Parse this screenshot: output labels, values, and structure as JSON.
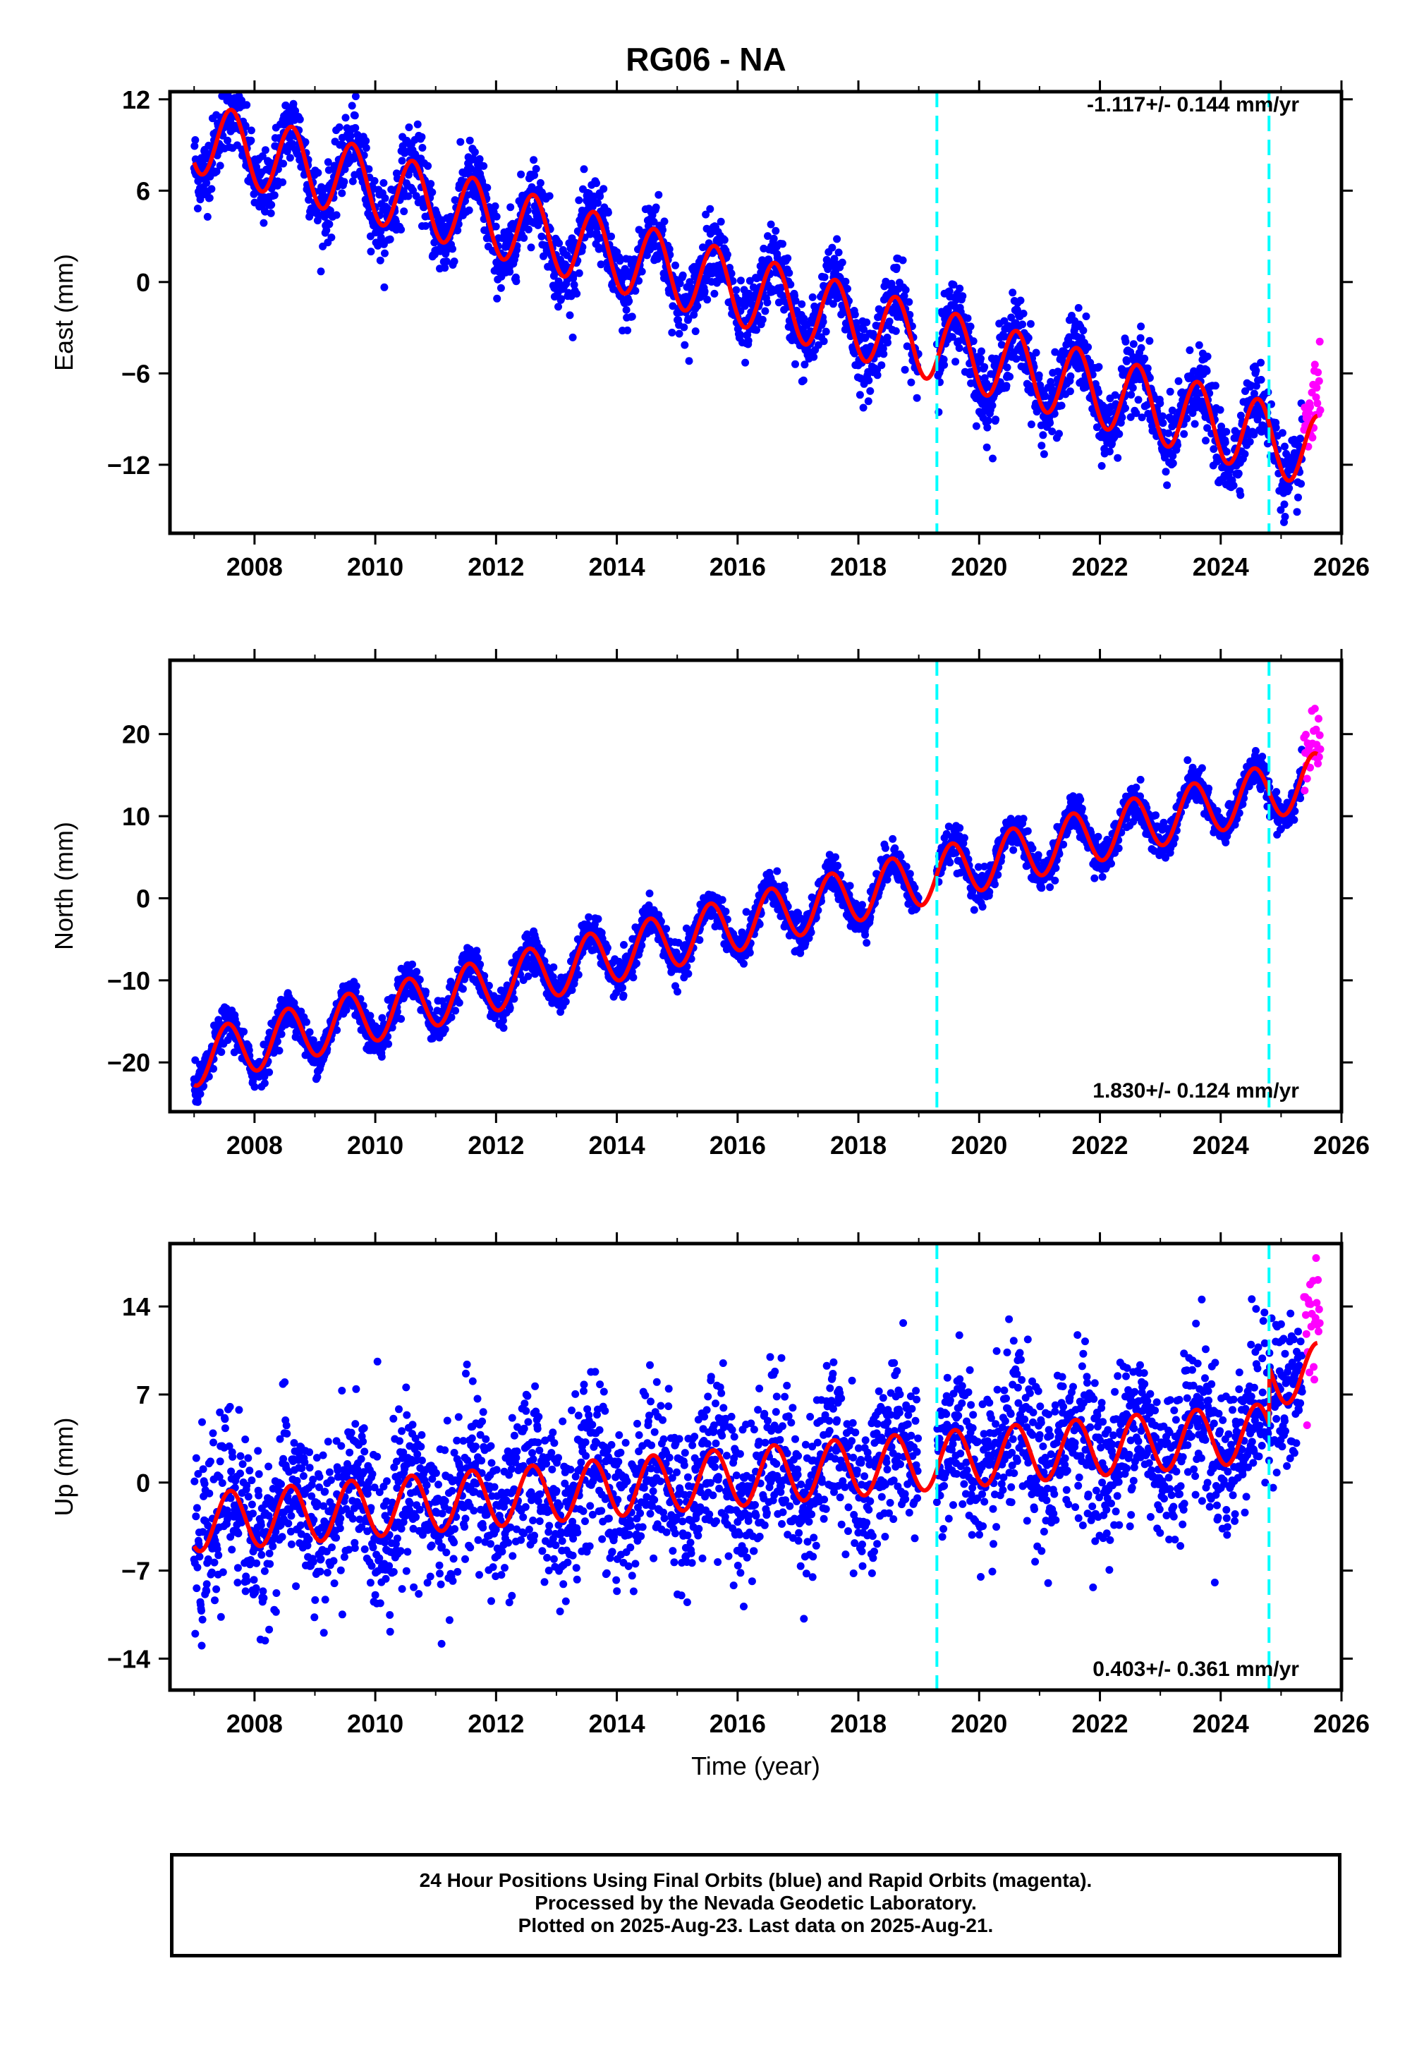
{
  "title": "RG06 - NA",
  "colors": {
    "final": "#0000ff",
    "rapid": "#ff00ff",
    "model": "#ff0000",
    "event": "#00ffff"
  },
  "chart_data": [
    {
      "type": "scatter",
      "name": "east",
      "ylabel": "East (mm)",
      "xlabel": "",
      "xlim": [
        2006.6,
        2026.0
      ],
      "ylim": [
        -16.5,
        12.5
      ],
      "yticks": [
        12,
        6,
        0,
        -6,
        -12
      ],
      "xticks": [
        2008,
        2010,
        2012,
        2014,
        2016,
        2018,
        2020,
        2022,
        2024,
        2026
      ],
      "rate": "-1.117+/- 0.144 mm/yr",
      "rate_position": "top-right",
      "events": [
        2019.3,
        2024.8
      ],
      "model": {
        "start": 2007.0,
        "end": 2025.6,
        "value_at_start": 9.6,
        "trend": -1.117,
        "annual_amplitude": 2.4,
        "annual_peak": 0.62
      },
      "noise": 1.2,
      "gap": [
        2019.0,
        2019.3
      ]
    },
    {
      "type": "scatter",
      "name": "north",
      "ylabel": "North (mm)",
      "xlabel": "",
      "xlim": [
        2006.6,
        2026.0
      ],
      "ylim": [
        -26,
        29
      ],
      "yticks": [
        20,
        10,
        0,
        -10,
        -20
      ],
      "xticks": [
        2008,
        2010,
        2012,
        2014,
        2016,
        2018,
        2020,
        2022,
        2024,
        2026
      ],
      "rate": "1.830+/- 0.124 mm/yr",
      "rate_position": "bottom-right",
      "events": [
        2019.3,
        2024.8
      ],
      "model": {
        "start": 2007.0,
        "end": 2025.6,
        "value_at_start": -19.6,
        "trend": 1.83,
        "annual_amplitude": 3.3,
        "annual_peak": 0.55
      },
      "noise": 1.1,
      "gap": [
        2019.0,
        2019.3
      ]
    },
    {
      "type": "scatter",
      "name": "up",
      "ylabel": "Up (mm)",
      "xlabel": "Time (year)",
      "xlim": [
        2006.6,
        2026.0
      ],
      "ylim": [
        -16.5,
        19
      ],
      "yticks": [
        14,
        7,
        0,
        -7,
        -14
      ],
      "xticks": [
        2008,
        2010,
        2012,
        2014,
        2016,
        2018,
        2020,
        2022,
        2024,
        2026
      ],
      "rate": "0.403+/- 0.361 mm/yr",
      "rate_position": "bottom-right",
      "events": [
        2019.3,
        2024.8
      ],
      "model": {
        "start": 2007.0,
        "end": 2025.6,
        "value_at_start": -3.2,
        "trend": 0.403,
        "annual_amplitude": 2.3,
        "annual_peak": 0.6,
        "offset_after_last_event": 4.5
      },
      "noise": 3.2,
      "gap": [
        2019.0,
        2019.3
      ]
    }
  ],
  "footer": {
    "line1": "24 Hour Positions Using Final Orbits (blue) and Rapid Orbits (magenta).",
    "line2": "Processed by the Nevada Geodetic Laboratory.",
    "line3": "Plotted on 2025-Aug-23. Last data on 2025-Aug-21."
  }
}
